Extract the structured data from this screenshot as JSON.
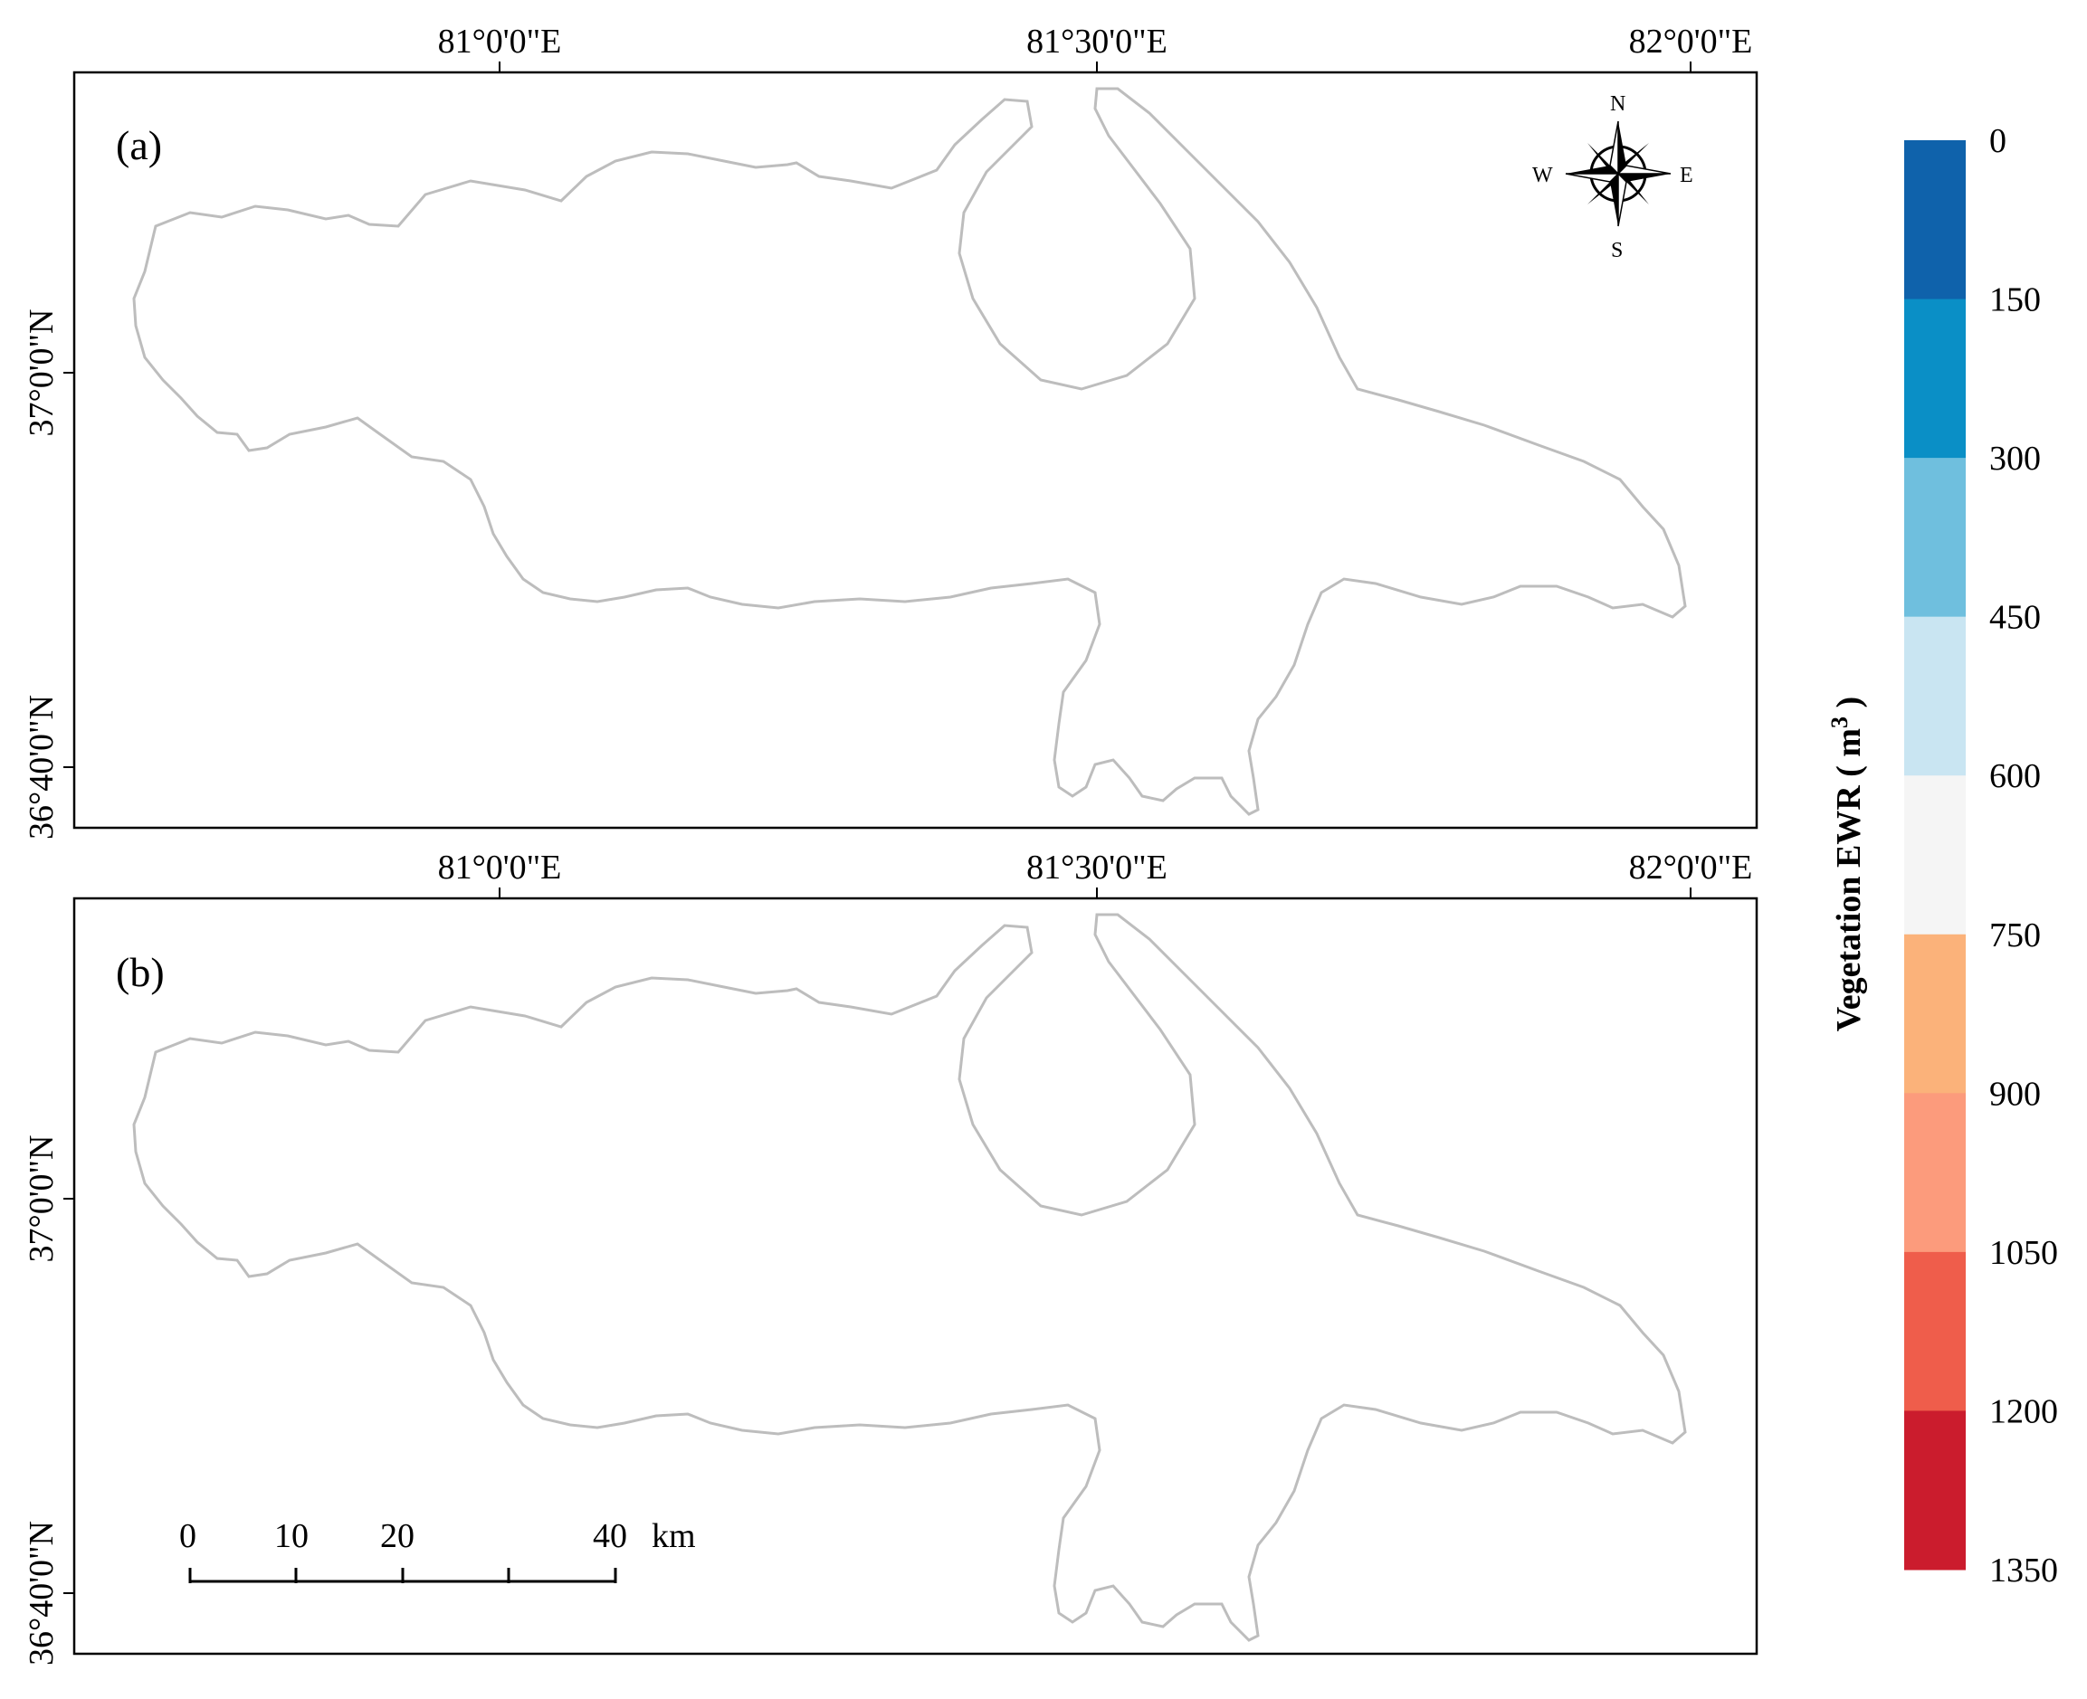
{
  "figure": {
    "panels": [
      {
        "label": "(a)",
        "x_ticks": [
          "81°0'0\"E",
          "81°30'0\"E",
          "82°0'0\"E"
        ],
        "y_ticks": [
          "37°0'0\"N",
          "36°40'0\"N"
        ],
        "compass": {
          "n": "N",
          "s": "S",
          "w": "W",
          "e": "E"
        }
      },
      {
        "label": "(b)",
        "x_ticks": [
          "81°0'0\"E",
          "81°30'0\"E",
          "82°0'0\"E"
        ],
        "y_ticks": [
          "37°0'0\"N",
          "36°40'0\"N"
        ],
        "scalebar": {
          "labels": [
            "0",
            "10",
            "20",
            "40"
          ],
          "unit": "km"
        }
      }
    ],
    "legend": {
      "title": "Vegetation EWR ( m",
      "title_sup": "3",
      "title_end": " )",
      "breaks": [
        "0",
        "150",
        "300",
        "450",
        "600",
        "750",
        "900",
        "1050",
        "1200",
        "1350"
      ],
      "colors": [
        "#0f62ab",
        "#0a8fc6",
        "#6fbfde",
        "#c9e5f2",
        "#f5f5f5",
        "#fbb27a",
        "#fc9b7c",
        "#ef5d4b",
        "#cb1c2d"
      ]
    },
    "map_colors": {
      "base_blue": "#1187c2",
      "dark_blue": "#0f62ab",
      "light_blue": "#c9e5f2",
      "pale": "#f3f3f3",
      "orange": "#f8b48c",
      "red": "#e8504a",
      "dark_red": "#cb1c2d",
      "outline": "#bdbdbd"
    }
  }
}
